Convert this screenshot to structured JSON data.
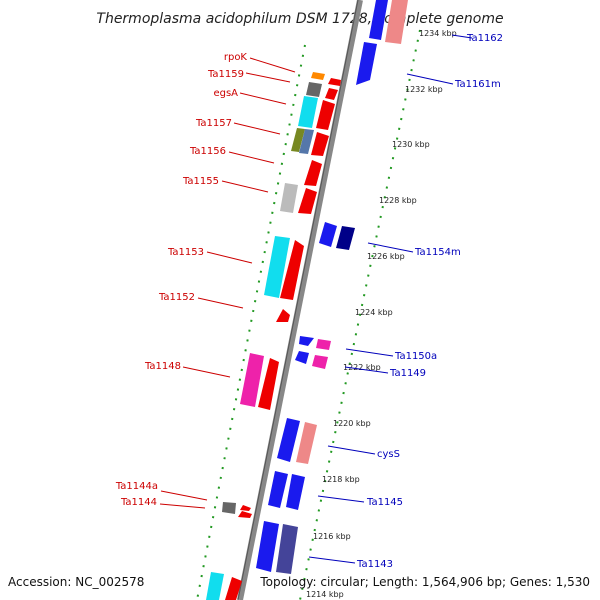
{
  "title": "Thermoplasma acidophilum DSM 1728, complete genome",
  "footer": {
    "accession": "Accession: NC_002578",
    "summary": "Topology: circular; Length: 1,564,906 bp; Genes: 1,530"
  },
  "colors": {
    "backbone": "#7a7a7a",
    "tick_green": "#229922",
    "left_label": "#cc0000",
    "right_label": "#0000bb"
  },
  "scale_labels": [
    "1234 kbp",
    "1232 kbp",
    "1230 kbp",
    "1228 kbp",
    "1226 kbp",
    "1224 kbp",
    "1222 kbp",
    "1220 kbp",
    "1218 kbp",
    "1216 kbp",
    "1214 kbp"
  ],
  "left_genes": [
    "rpoK",
    "Ta1159",
    "egsA",
    "Ta1157",
    "Ta1156",
    "Ta1155",
    "Ta1153",
    "Ta1152",
    "Ta1148",
    "Ta1144a",
    "Ta1144"
  ],
  "right_genes": [
    "Ta1162",
    "Ta1161m",
    "Ta1154m",
    "Ta1150a",
    "Ta1149",
    "cysS",
    "Ta1145",
    "Ta1143"
  ]
}
